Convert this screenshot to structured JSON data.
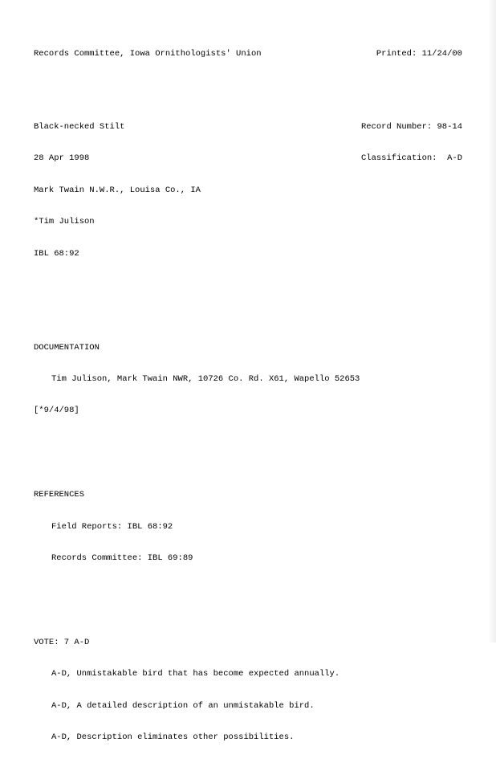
{
  "header": {
    "committee": "Records Committee, Iowa Ornithologists' Union",
    "printed_label": "Printed:",
    "printed_date": "11/24/00"
  },
  "record": {
    "species": "Black-necked Stilt",
    "date": "28 Apr 1998",
    "location": "Mark Twain N.W.R., Louisa Co., IA",
    "observer": "*Tim Julison",
    "ibl": "IBL 68:92",
    "record_number_label": "Record Number:",
    "record_number": "98-14",
    "classification_label": "Classification:",
    "classification": "A-D"
  },
  "documentation": {
    "heading": "DOCUMENTATION",
    "text": "Tim Julison, Mark Twain NWR, 10726 Co. Rd. X61, Wapello 52653",
    "date_note": "[*9/4/98]"
  },
  "references": {
    "heading": "REFERENCES",
    "field_reports": "Field Reports: IBL 68:92",
    "records_committee": "Records Committee: IBL 69:89"
  },
  "vote": {
    "heading": "VOTE: 7 A-D",
    "lines": [
      "A-D, Unmistakable bird that has become expected annually.",
      "A-D, A detailed description of an unmistakable bird.",
      "A-D, Description eliminates other possibilities."
    ]
  }
}
